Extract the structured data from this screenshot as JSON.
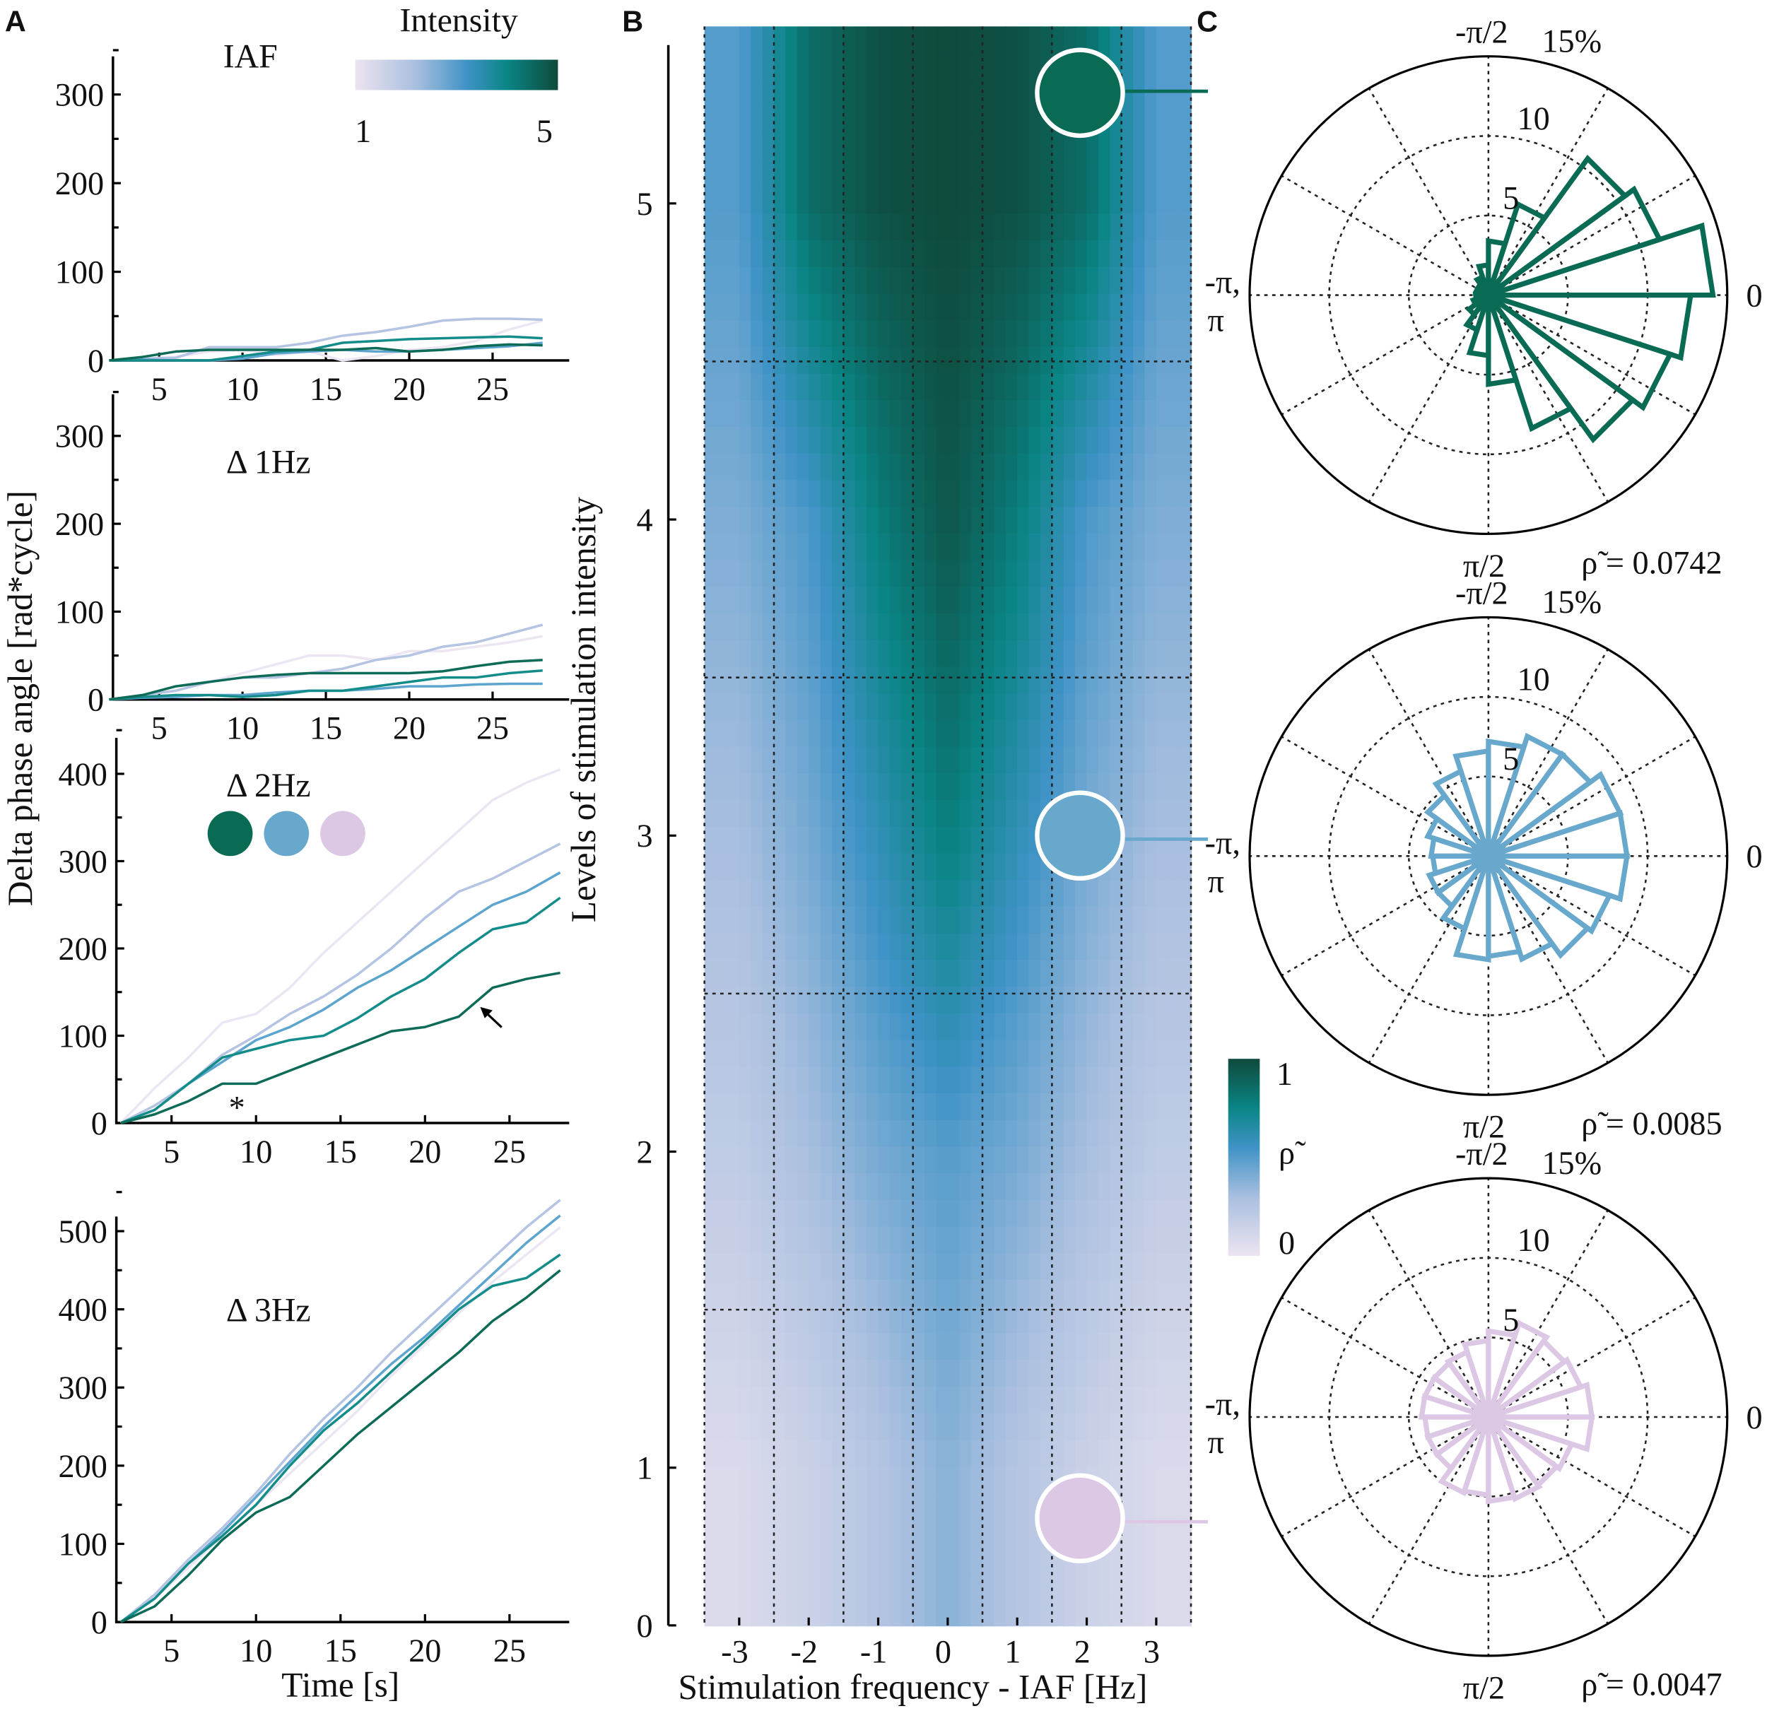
{
  "panels": {
    "a": "A",
    "b": "B",
    "c": "C"
  },
  "panel_a": {
    "ylabel": "Delta phase angle [rad*cycle]",
    "xlabel": "Time [s]",
    "intensity_legend": {
      "title": "Intensity",
      "min_label": "1",
      "max_label": "5"
    },
    "asterisk": "*",
    "marker_colors": [
      "#0a6b55",
      "#67a8cc",
      "#dcc8e4"
    ]
  },
  "series_colors": [
    "#ece6f2",
    "#b4c4e2",
    "#5da5cf",
    "#138c8a",
    "#0d6b57"
  ],
  "chart_data": [
    {
      "type": "line",
      "title": "IAF",
      "xlabel": "",
      "ylabel": "Delta phase angle [rad*cycle]",
      "xticks": [
        "5",
        "10",
        "15",
        "20",
        "25"
      ],
      "yticks": [
        "0",
        "100",
        "200",
        "300"
      ],
      "x": [
        2,
        4,
        6,
        8,
        10,
        12,
        14,
        16,
        18,
        20,
        22,
        24,
        26,
        28
      ],
      "series": [
        {
          "name": "Intensity 1",
          "values": [
            0,
            2,
            4,
            10,
            12,
            6,
            10,
            0,
            5,
            12,
            15,
            22,
            35,
            45
          ]
        },
        {
          "name": "Intensity 2",
          "values": [
            0,
            2,
            3,
            15,
            15,
            15,
            20,
            28,
            32,
            38,
            45,
            47,
            47,
            46
          ]
        },
        {
          "name": "Intensity 3",
          "values": [
            0,
            1,
            0,
            0,
            2,
            8,
            10,
            12,
            10,
            10,
            12,
            14,
            16,
            20
          ]
        },
        {
          "name": "Intensity 4",
          "values": [
            0,
            0,
            0,
            0,
            5,
            10,
            12,
            20,
            22,
            24,
            25,
            26,
            27,
            25
          ]
        },
        {
          "name": "Intensity 5",
          "values": [
            0,
            4,
            10,
            12,
            12,
            12,
            12,
            12,
            14,
            10,
            12,
            16,
            18,
            17
          ]
        }
      ]
    },
    {
      "type": "line",
      "title": "Δ 1Hz",
      "xlabel": "",
      "ylabel": "",
      "xticks": [
        "5",
        "10",
        "15",
        "20",
        "25"
      ],
      "yticks": [
        "0",
        "100",
        "200",
        "300"
      ],
      "x": [
        2,
        4,
        6,
        8,
        10,
        12,
        14,
        16,
        18,
        20,
        22,
        24,
        26,
        28
      ],
      "series": [
        {
          "name": "Intensity 1",
          "values": [
            0,
            5,
            15,
            20,
            30,
            40,
            50,
            50,
            45,
            55,
            55,
            60,
            65,
            72
          ]
        },
        {
          "name": "Intensity 2",
          "values": [
            0,
            5,
            10,
            20,
            25,
            25,
            30,
            35,
            45,
            50,
            60,
            65,
            75,
            85
          ]
        },
        {
          "name": "Intensity 3",
          "values": [
            0,
            2,
            3,
            5,
            5,
            8,
            10,
            10,
            12,
            15,
            15,
            17,
            18,
            18
          ]
        },
        {
          "name": "Intensity 4",
          "values": [
            0,
            3,
            5,
            5,
            3,
            5,
            10,
            10,
            15,
            20,
            25,
            25,
            30,
            33
          ]
        },
        {
          "name": "Intensity 5",
          "values": [
            0,
            5,
            15,
            20,
            25,
            28,
            30,
            30,
            30,
            30,
            32,
            38,
            43,
            45
          ]
        }
      ]
    },
    {
      "type": "line",
      "title": "Δ 2Hz",
      "xlabel": "",
      "ylabel": "",
      "xticks": [
        "5",
        "10",
        "15",
        "20",
        "25"
      ],
      "yticks": [
        "0",
        "100",
        "200",
        "300",
        "400"
      ],
      "x": [
        2,
        4,
        6,
        8,
        10,
        12,
        14,
        16,
        18,
        20,
        22,
        24,
        26,
        28
      ],
      "series": [
        {
          "name": "Intensity 1",
          "values": [
            0,
            40,
            75,
            115,
            125,
            155,
            195,
            230,
            265,
            300,
            335,
            370,
            390,
            405
          ]
        },
        {
          "name": "Intensity 2",
          "values": [
            0,
            20,
            45,
            78,
            100,
            125,
            145,
            170,
            200,
            235,
            265,
            280,
            300,
            320
          ]
        },
        {
          "name": "Intensity 3",
          "values": [
            0,
            15,
            45,
            70,
            95,
            110,
            130,
            155,
            175,
            200,
            225,
            250,
            265,
            287
          ]
        },
        {
          "name": "Intensity 4",
          "values": [
            0,
            15,
            45,
            75,
            85,
            95,
            100,
            120,
            145,
            165,
            195,
            222,
            230,
            258
          ]
        },
        {
          "name": "Intensity 5",
          "values": [
            0,
            10,
            25,
            45,
            45,
            60,
            75,
            90,
            105,
            110,
            122,
            155,
            165,
            172
          ]
        }
      ]
    },
    {
      "type": "line",
      "title": "Δ 3Hz",
      "xlabel": "Time [s]",
      "ylabel": "",
      "xticks": [
        "5",
        "10",
        "15",
        "20",
        "25"
      ],
      "yticks": [
        "0",
        "100",
        "200",
        "300",
        "400",
        "500"
      ],
      "x": [
        2,
        4,
        6,
        8,
        10,
        12,
        14,
        16,
        18,
        20,
        22,
        24,
        26,
        28
      ],
      "series": [
        {
          "name": "Intensity 1",
          "values": [
            0,
            30,
            70,
            110,
            150,
            190,
            230,
            270,
            315,
            355,
            395,
            435,
            470,
            505
          ]
        },
        {
          "name": "Intensity 2",
          "values": [
            0,
            35,
            80,
            120,
            165,
            215,
            260,
            300,
            345,
            385,
            425,
            465,
            505,
            540
          ]
        },
        {
          "name": "Intensity 3",
          "values": [
            0,
            30,
            75,
            115,
            160,
            205,
            250,
            290,
            330,
            365,
            405,
            445,
            485,
            520
          ]
        },
        {
          "name": "Intensity 4",
          "values": [
            0,
            30,
            75,
            110,
            150,
            200,
            245,
            280,
            320,
            360,
            400,
            430,
            440,
            470
          ]
        },
        {
          "name": "Intensity 5",
          "values": [
            0,
            20,
            60,
            105,
            140,
            160,
            200,
            240,
            275,
            310,
            345,
            385,
            415,
            450
          ]
        }
      ]
    },
    {
      "type": "heatmap",
      "xlabel": "Stimulation frequency - IAF [Hz]",
      "ylabel": "Levels of stimulation intensity",
      "x": [
        -3,
        -2,
        -1,
        0,
        1,
        2,
        3
      ],
      "y": [
        1,
        2,
        3,
        4,
        5
      ],
      "xticks": [
        "-3",
        "-2",
        "-1",
        "0",
        "1",
        "2",
        "3"
      ],
      "yticks": [
        "0",
        "1",
        "2",
        "3",
        "4",
        "5"
      ],
      "values": [
        [
          0.08,
          0.15,
          0.25,
          0.38,
          0.25,
          0.15,
          0.08
        ],
        [
          0.2,
          0.3,
          0.42,
          0.5,
          0.42,
          0.3,
          0.2
        ],
        [
          0.3,
          0.42,
          0.6,
          0.78,
          0.6,
          0.42,
          0.3
        ],
        [
          0.4,
          0.52,
          0.78,
          0.95,
          0.78,
          0.52,
          0.4
        ],
        [
          0.5,
          0.85,
          0.97,
          1.0,
          0.97,
          0.85,
          0.5
        ]
      ],
      "colorbar": {
        "label": "ρ̃",
        "min_label": "0",
        "max_label": "1",
        "range": [
          0,
          1
        ]
      },
      "highlighted": [
        {
          "freq": 2,
          "intensity": 5.35,
          "color": "#0a6b55"
        },
        {
          "freq": 2,
          "intensity": 3.0,
          "color": "#67a8cc"
        },
        {
          "freq": 2,
          "intensity": 0.84,
          "color": "#dcc8e4"
        }
      ]
    },
    {
      "type": "polar-histogram",
      "color": "#0a6b55",
      "rlim": [
        0,
        15
      ],
      "rticks": [
        "5",
        "10"
      ],
      "rmax_label": "15%",
      "angle_labels": {
        "top": "-π/2",
        "right": "0",
        "left1": "-π,",
        "left2": "π",
        "bottom": "π/2"
      },
      "stat": "ρ̃ = 0.0742",
      "bin_start_deg": 0,
      "bin_width_deg": 18,
      "values": [
        12.7,
        12.0,
        11.2,
        8.8,
        5.6,
        3.8,
        2.3,
        1.5,
        1.0,
        0.8,
        0.7,
        0.8,
        0.8,
        1.2,
        1.9,
        3.4,
        6.0,
        10.6,
        11.3,
        14.1
      ]
    },
    {
      "type": "polar-histogram",
      "color": "#67a8cc",
      "rlim": [
        0,
        15
      ],
      "rticks": [
        "5",
        "10"
      ],
      "rmax_label": "15%",
      "angle_labels": {
        "top": "-π/2",
        "right": "0",
        "left1": "-π,",
        "left2": "π",
        "bottom": "π/2"
      },
      "stat": "ρ̃ = 0.0085",
      "bin_start_deg": 0,
      "bin_width_deg": 18,
      "values": [
        8.7,
        8.0,
        7.7,
        6.8,
        6.3,
        6.5,
        4.8,
        3.9,
        3.9,
        3.5,
        3.6,
        4.0,
        4.7,
        5.6,
        6.6,
        7.2,
        7.9,
        7.9,
        8.7,
        8.7
      ]
    },
    {
      "type": "polar-histogram",
      "color": "#dcc8e4",
      "rlim": [
        0,
        15
      ],
      "rticks": [
        "5",
        "10"
      ],
      "rmax_label": "15%",
      "angle_labels": {
        "top": "-π/2",
        "right": "0",
        "left1": "-π,",
        "left2": "π",
        "bottom": "π/2"
      },
      "stat": "ρ̃ = 0.0047",
      "bin_start_deg": 0,
      "bin_width_deg": 18,
      "values": [
        6.5,
        5.5,
        5.3,
        5.4,
        5.3,
        4.9,
        5.0,
        4.0,
        4.0,
        4.0,
        4.2,
        4.2,
        4.2,
        4.3,
        4.8,
        5.4,
        6.2,
        5.9,
        6.1,
        6.5
      ]
    }
  ]
}
